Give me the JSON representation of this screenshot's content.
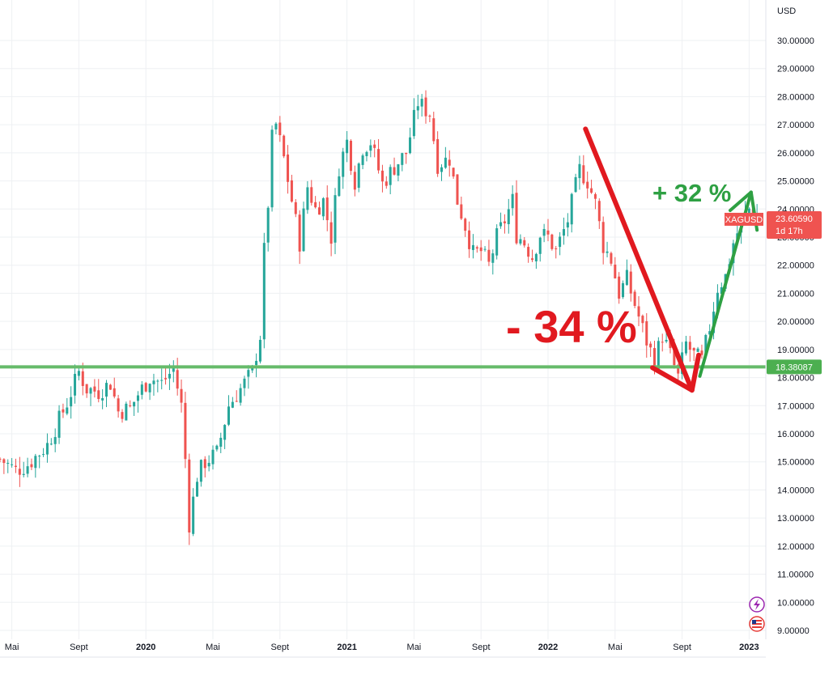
{
  "chart_data": {
    "type": "candlestick",
    "currency": "USD",
    "symbol": "XAGUSD",
    "timeframe_label": "1d 17h",
    "last_price_label": "23.60590",
    "last_price": 23.6059,
    "support_level_label": "18.38087",
    "support_level": 18.38087,
    "ylim": [
      8.85,
      30.4
    ],
    "y_ticks": [
      "9.00000",
      "10.00000",
      "11.00000",
      "12.00000",
      "13.00000",
      "14.00000",
      "15.00000",
      "16.00000",
      "17.00000",
      "18.00000",
      "19.00000",
      "20.00000",
      "21.00000",
      "22.00000",
      "23.00000",
      "24.00000",
      "25.00000",
      "26.00000",
      "27.00000",
      "28.00000",
      "29.00000",
      "30.00000"
    ],
    "x_ticks": [
      {
        "label": "Mai",
        "t": 3,
        "year": false
      },
      {
        "label": "Sept",
        "t": 20,
        "year": false
      },
      {
        "label": "2020",
        "t": 37,
        "year": true
      },
      {
        "label": "Mai",
        "t": 54,
        "year": false
      },
      {
        "label": "Sept",
        "t": 71,
        "year": false
      },
      {
        "label": "2021",
        "t": 88,
        "year": true
      },
      {
        "label": "Mai",
        "t": 105,
        "year": false
      },
      {
        "label": "Sept",
        "t": 122,
        "year": false
      },
      {
        "label": "2022",
        "t": 139,
        "year": true
      },
      {
        "label": "Mai",
        "t": 156,
        "year": false
      },
      {
        "label": "Sept",
        "t": 173,
        "year": false
      },
      {
        "label": "2023",
        "t": 190,
        "year": true
      }
    ],
    "x_range": [
      0,
      193
    ],
    "close_waypoints": [
      [
        0,
        15.1
      ],
      [
        4,
        14.7
      ],
      [
        7,
        14.9
      ],
      [
        12,
        15.6
      ],
      [
        14,
        16.2
      ],
      [
        17,
        17.1
      ],
      [
        20,
        18.2
      ],
      [
        22,
        17.6
      ],
      [
        25,
        17.5
      ],
      [
        28,
        17.8
      ],
      [
        30,
        16.8
      ],
      [
        33,
        16.9
      ],
      [
        35,
        17.4
      ],
      [
        38,
        18.0
      ],
      [
        41,
        17.8
      ],
      [
        44,
        18.3
      ],
      [
        46,
        17.0
      ],
      [
        47,
        15.1
      ],
      [
        48,
        12.8
      ],
      [
        50,
        14.5
      ],
      [
        52,
        15.0
      ],
      [
        55,
        15.3
      ],
      [
        58,
        17.0
      ],
      [
        61,
        17.6
      ],
      [
        64,
        18.2
      ],
      [
        66,
        19.5
      ],
      [
        67,
        22.5
      ],
      [
        68,
        24.2
      ],
      [
        69,
        26.5
      ],
      [
        70,
        27.0
      ],
      [
        72,
        25.8
      ],
      [
        74,
        24.3
      ],
      [
        76,
        22.8
      ],
      [
        78,
        24.8
      ],
      [
        80,
        24.0
      ],
      [
        82,
        24.3
      ],
      [
        84,
        23.0
      ],
      [
        86,
        25.5
      ],
      [
        88,
        26.4
      ],
      [
        90,
        25.0
      ],
      [
        92,
        26.2
      ],
      [
        94,
        26.4
      ],
      [
        97,
        24.9
      ],
      [
        100,
        25.5
      ],
      [
        103,
        26.0
      ],
      [
        106,
        27.8
      ],
      [
        109,
        27.4
      ],
      [
        111,
        25.6
      ],
      [
        114,
        25.8
      ],
      [
        116,
        24.3
      ],
      [
        118,
        23.4
      ],
      [
        120,
        22.4
      ],
      [
        122,
        22.5
      ],
      [
        124,
        22.0
      ],
      [
        126,
        23.0
      ],
      [
        128,
        23.6
      ],
      [
        130,
        24.3
      ],
      [
        131,
        23.1
      ],
      [
        133,
        22.8
      ],
      [
        135,
        22.3
      ],
      [
        137,
        23.1
      ],
      [
        139,
        23.0
      ],
      [
        141,
        22.5
      ],
      [
        144,
        23.6
      ],
      [
        147,
        25.4
      ],
      [
        149,
        25.0
      ],
      [
        151,
        24.2
      ],
      [
        153,
        22.7
      ],
      [
        155,
        22.2
      ],
      [
        157,
        21.0
      ],
      [
        159,
        21.5
      ],
      [
        161,
        20.6
      ],
      [
        164,
        19.3
      ],
      [
        166,
        18.6
      ],
      [
        168,
        19.5
      ],
      [
        170,
        18.8
      ],
      [
        172,
        18.0
      ],
      [
        174,
        19.2
      ],
      [
        176,
        18.8
      ],
      [
        178,
        18.6
      ],
      [
        180,
        19.8
      ],
      [
        182,
        21.2
      ],
      [
        184,
        21.6
      ],
      [
        186,
        22.8
      ],
      [
        188,
        23.5
      ],
      [
        190,
        24.0
      ],
      [
        193,
        23.6
      ]
    ]
  },
  "annotations": {
    "decline_label": "- 34 %",
    "rise_label": "+ 32 %"
  },
  "colors": {
    "up": "#26a69a",
    "down": "#ef5350",
    "support_line": "#66bb6a",
    "arrow_down": "#e1191f",
    "arrow_up": "#2ea043",
    "badge_price": "#ef5350",
    "badge_support": "#4caf50"
  },
  "icons": {
    "lightning": "lightning-icon",
    "flag": "us-flag-icon"
  }
}
